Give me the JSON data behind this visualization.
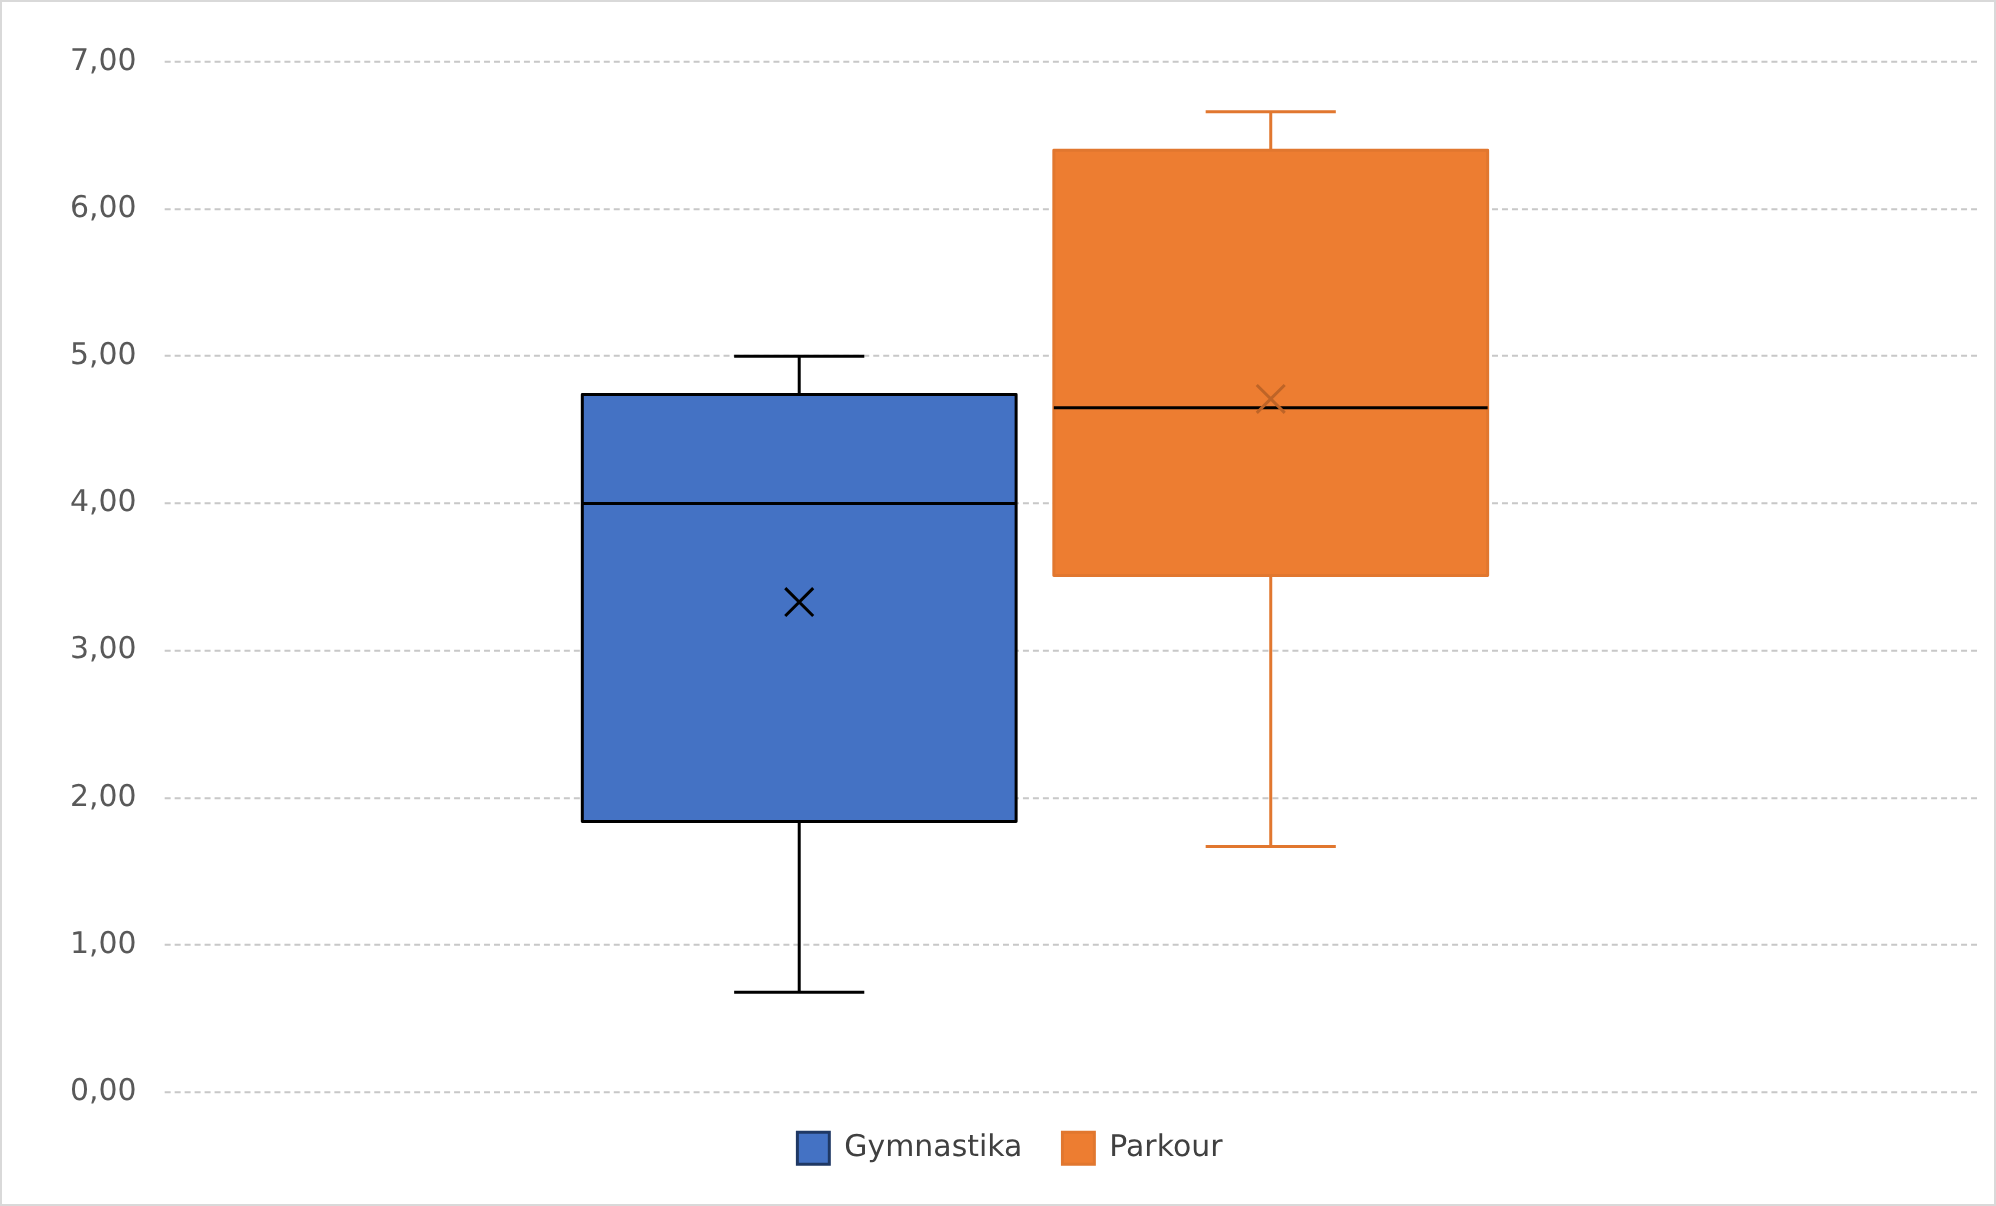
{
  "chart_data": {
    "type": "box",
    "categories": [
      null
    ],
    "series": [
      {
        "name": "Gymnastika",
        "color": "#4472c4",
        "boxes": [
          {
            "low": 0.68,
            "q1": 1.84,
            "median": 4.0,
            "q3": 4.74,
            "high": 5.0,
            "mean": 3.33
          }
        ]
      },
      {
        "name": "Parkour",
        "color": "#ed7d31",
        "boxes": [
          {
            "low": 1.67,
            "q1": 3.51,
            "median": 4.65,
            "q3": 6.4,
            "high": 6.66,
            "mean": 4.71
          }
        ]
      }
    ],
    "ylim": [
      0,
      7
    ],
    "yticks": [
      {
        "value": 0,
        "label": "0,00"
      },
      {
        "value": 1,
        "label": "1,00"
      },
      {
        "value": 2,
        "label": "2,00"
      },
      {
        "value": 3,
        "label": "3,00"
      },
      {
        "value": 4,
        "label": "4,00"
      },
      {
        "value": 5,
        "label": "5,00"
      },
      {
        "value": 6,
        "label": "6,00"
      },
      {
        "value": 7,
        "label": "7,00"
      }
    ],
    "grid": "y",
    "legend": "bottom",
    "marker": "cross"
  }
}
